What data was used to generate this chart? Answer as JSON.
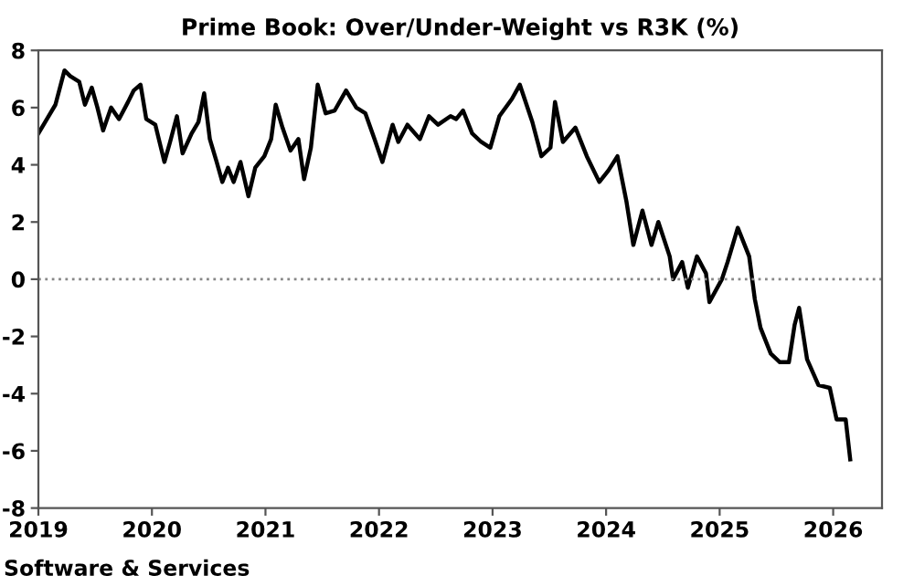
{
  "chart_data": {
    "type": "line",
    "title": "Prime Book: Over/Under-Weight vs R3K (%)",
    "annotations": [
      "Software & Services"
    ],
    "x": [
      2019.0,
      2019.06,
      2019.15,
      2019.23,
      2019.28,
      2019.36,
      2019.41,
      2019.47,
      2019.52,
      2019.57,
      2019.64,
      2019.71,
      2019.79,
      2019.84,
      2019.9,
      2019.95,
      2020.03,
      2020.11,
      2020.16,
      2020.22,
      2020.27,
      2020.35,
      2020.41,
      2020.46,
      2020.51,
      2020.57,
      2020.62,
      2020.67,
      2020.72,
      2020.78,
      2020.85,
      2020.91,
      2020.99,
      2021.05,
      2021.09,
      2021.15,
      2021.22,
      2021.29,
      2021.34,
      2021.4,
      2021.46,
      2021.53,
      2021.61,
      2021.71,
      2021.8,
      2021.88,
      2021.96,
      2022.03,
      2022.12,
      2022.17,
      2022.25,
      2022.36,
      2022.44,
      2022.52,
      2022.63,
      2022.68,
      2022.74,
      2022.82,
      2022.9,
      2022.98,
      2023.06,
      2023.17,
      2023.24,
      2023.35,
      2023.43,
      2023.51,
      2023.55,
      2023.62,
      2023.73,
      2023.83,
      2023.94,
      2024.02,
      2024.1,
      2024.18,
      2024.24,
      2024.32,
      2024.4,
      2024.46,
      2024.56,
      2024.59,
      2024.67,
      2024.72,
      2024.8,
      2024.88,
      2024.91,
      2025.02,
      2025.07,
      2025.16,
      2025.26,
      2025.31,
      2025.36,
      2025.45,
      2025.53,
      2025.61,
      2025.66,
      2025.7,
      2025.77,
      2025.87,
      2025.97,
      2026.03,
      2026.11,
      2026.15
    ],
    "series": [
      {
        "color": "#000000",
        "values": [
          5.1,
          5.5,
          6.1,
          7.3,
          7.1,
          6.9,
          6.1,
          6.7,
          6.0,
          5.2,
          6.0,
          5.6,
          6.2,
          6.6,
          6.8,
          5.6,
          5.4,
          4.1,
          4.8,
          5.7,
          4.4,
          5.1,
          5.5,
          6.5,
          4.9,
          4.1,
          3.4,
          3.9,
          3.4,
          4.1,
          2.9,
          3.9,
          4.3,
          4.9,
          6.1,
          5.3,
          4.5,
          4.9,
          3.5,
          4.6,
          6.8,
          5.8,
          5.9,
          6.6,
          6.0,
          5.8,
          4.9,
          4.1,
          5.4,
          4.8,
          5.4,
          4.9,
          5.7,
          5.4,
          5.7,
          5.6,
          5.9,
          5.1,
          4.8,
          4.6,
          5.7,
          6.3,
          6.8,
          5.5,
          4.3,
          4.6,
          6.2,
          4.8,
          5.3,
          4.3,
          3.4,
          3.8,
          4.3,
          2.7,
          1.2,
          2.4,
          1.2,
          2.0,
          0.8,
          0.0,
          0.6,
          -0.3,
          0.8,
          0.2,
          -0.8,
          0.0,
          0.6,
          1.8,
          0.8,
          -0.7,
          -1.7,
          -2.6,
          -2.9,
          -2.9,
          -1.6,
          -1.0,
          -2.8,
          -3.7,
          -3.8,
          -4.9,
          -4.9,
          -6.3
        ]
      }
    ],
    "xlim": [
      2019,
      2026.43
    ],
    "xticks": [
      2019,
      2020,
      2021,
      2022,
      2023,
      2024,
      2025,
      2026
    ],
    "ylim": [
      -8,
      8
    ],
    "yticks": [
      -8,
      -6,
      -4,
      -2,
      0,
      2,
      4,
      6,
      8
    ],
    "ref_lines": [
      {
        "axis": "y",
        "value": 0,
        "color": "#888888",
        "line_style": "dotted"
      }
    ],
    "grid": false,
    "legend": false,
    "marker": "none",
    "line_style": "solid"
  }
}
